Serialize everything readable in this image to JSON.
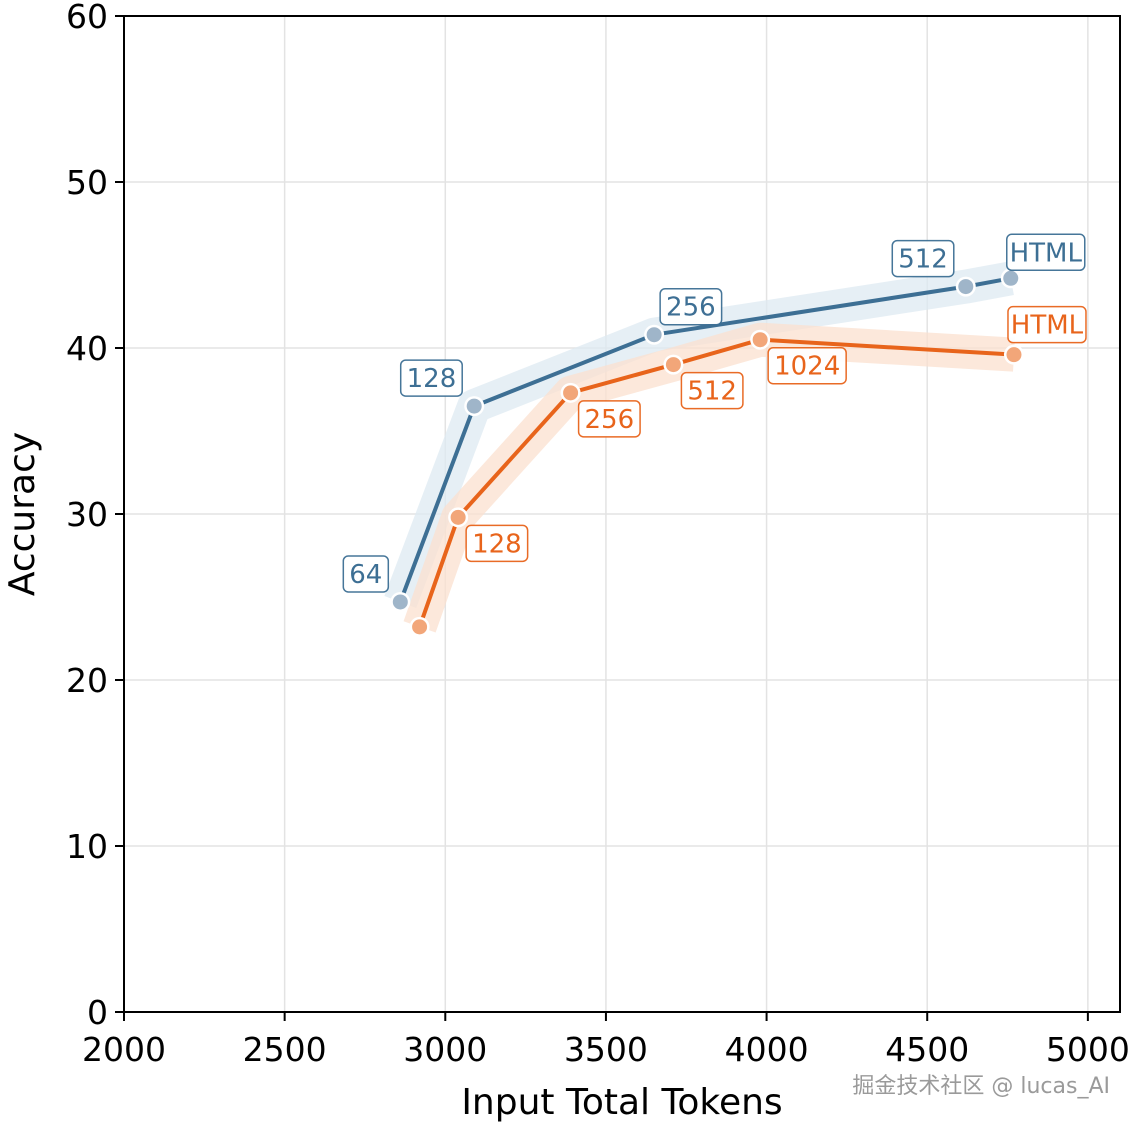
{
  "chart_data": {
    "type": "line",
    "xlabel": "Input Total Tokens",
    "ylabel": "Accuracy",
    "xlim": [
      2000,
      5100
    ],
    "ylim": [
      0,
      60
    ],
    "xticks": [
      2000,
      2500,
      3000,
      3500,
      4000,
      4500,
      5000
    ],
    "yticks": [
      0,
      10,
      20,
      30,
      40,
      50,
      60
    ],
    "grid": true,
    "series": [
      {
        "color": "#3d6f94",
        "marker_color": "#9fb5c9",
        "band_color": "#dde9f1",
        "points": [
          {
            "x": 2860,
            "y": 24.7,
            "label": "64"
          },
          {
            "x": 3090,
            "y": 36.5,
            "label": "128"
          },
          {
            "x": 3650,
            "y": 40.8,
            "label": "256"
          },
          {
            "x": 4620,
            "y": 43.7,
            "label": "512"
          },
          {
            "x": 4760,
            "y": 44.2,
            "label": "HTML"
          }
        ]
      },
      {
        "color": "#e8641b",
        "marker_color": "#f2a679",
        "band_color": "#fbe0cf",
        "points": [
          {
            "x": 2920,
            "y": 23.2,
            "label": ""
          },
          {
            "x": 3040,
            "y": 29.8,
            "label": "128"
          },
          {
            "x": 3390,
            "y": 37.3,
            "label": "256"
          },
          {
            "x": 3710,
            "y": 39.0,
            "label": "512"
          },
          {
            "x": 3980,
            "y": 40.5,
            "label": "1024"
          },
          {
            "x": 4770,
            "y": 39.6,
            "label": "HTML"
          }
        ]
      }
    ]
  },
  "watermark": "掘金技术社区 @ lucas_AI"
}
